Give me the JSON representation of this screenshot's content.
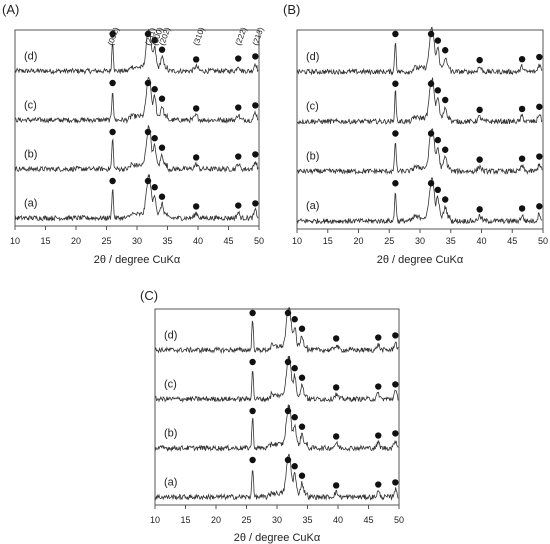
{
  "chart_data": [
    {
      "type": "line",
      "panel_label": "(A)",
      "xlabel": "2θ / degree CuKα",
      "xlim": [
        10,
        50
      ],
      "x_ticks": [
        "10",
        "15",
        "20",
        "25",
        "30",
        "35",
        "40",
        "45",
        "50"
      ],
      "series": [
        {
          "name": "(d)"
        },
        {
          "name": "(c)"
        },
        {
          "name": "(b)"
        },
        {
          "name": "(a)"
        }
      ],
      "markers": [
        26.0,
        31.8,
        32.9,
        34.1,
        39.7,
        46.6,
        49.4
      ],
      "peak_labels": [
        {
          "text": "(002)",
          "x": 26.0
        },
        {
          "text": "(211)",
          "x": 31.8
        },
        {
          "text": "(300)",
          "x": 32.9
        },
        {
          "text": "(202)",
          "x": 34.1
        },
        {
          "text": "(310)",
          "x": 39.7
        },
        {
          "text": "(222)",
          "x": 46.6
        },
        {
          "text": "(213)",
          "x": 49.4
        }
      ]
    },
    {
      "type": "line",
      "panel_label": "(B)",
      "xlabel": "2θ / degree CuKα",
      "xlim": [
        10,
        50
      ],
      "x_ticks": [
        "10",
        "15",
        "20",
        "25",
        "30",
        "35",
        "40",
        "45",
        "50"
      ],
      "series": [
        {
          "name": "(d)"
        },
        {
          "name": "(c)"
        },
        {
          "name": "(b)"
        },
        {
          "name": "(a)"
        }
      ],
      "markers": [
        26.0,
        31.8,
        32.9,
        34.1,
        39.7,
        46.6,
        49.4
      ]
    },
    {
      "type": "line",
      "panel_label": "(C)",
      "xlabel": "2θ / degree CuKα",
      "xlim": [
        10,
        50
      ],
      "x_ticks": [
        "10",
        "15",
        "20",
        "25",
        "30",
        "35",
        "40",
        "45",
        "50"
      ],
      "series": [
        {
          "name": "(d)"
        },
        {
          "name": "(c)"
        },
        {
          "name": "(b)"
        },
        {
          "name": "(a)"
        }
      ],
      "markers": [
        26.0,
        31.8,
        32.9,
        34.1,
        39.7,
        46.6,
        49.4
      ]
    }
  ]
}
